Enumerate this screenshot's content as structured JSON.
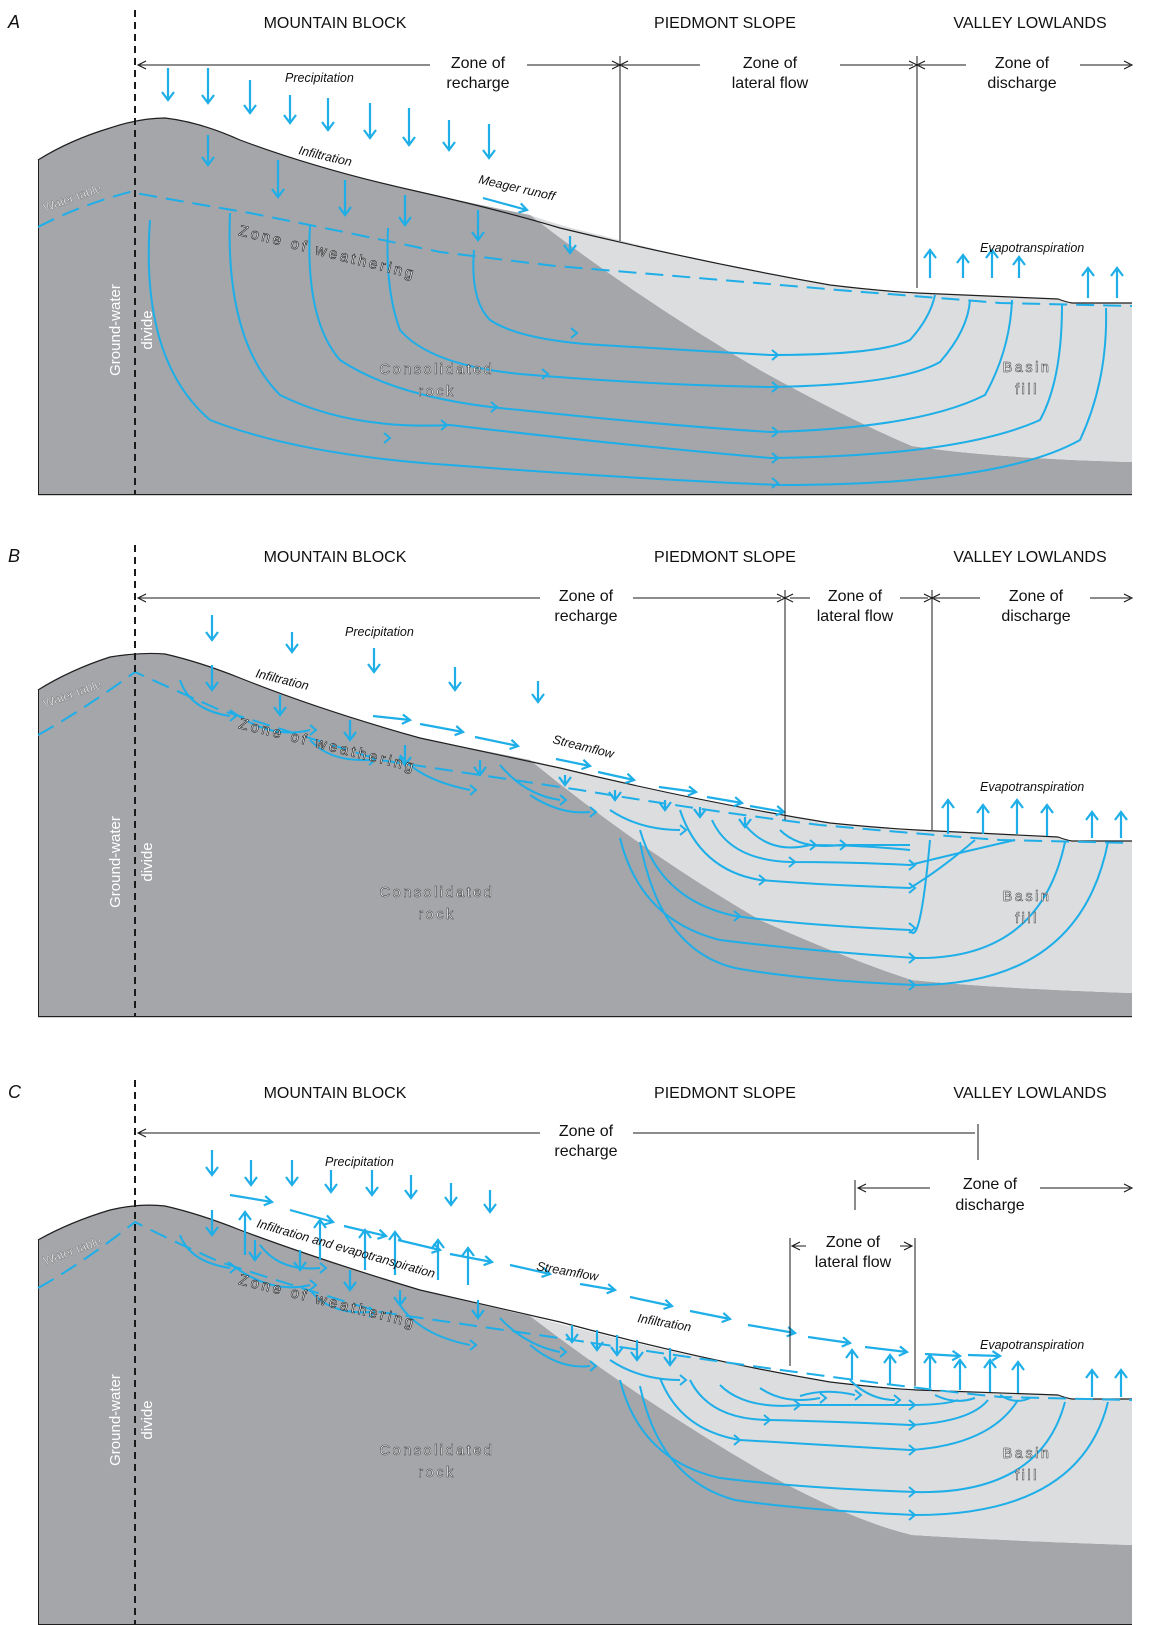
{
  "colors": {
    "rock": "#a4a6aa",
    "basin": "#dcdddf",
    "water": "#1eaee8",
    "line": "#1a1a1a"
  },
  "panels": [
    {
      "letter": "A",
      "regions": {
        "mountain": "MOUNTAIN BLOCK",
        "piedmont": "PIEDMONT SLOPE",
        "valley": "VALLEY LOWLANDS"
      },
      "zones": {
        "recharge": [
          "Zone of",
          "recharge"
        ],
        "lateral": [
          "Zone of",
          "lateral flow"
        ],
        "discharge": [
          "Zone of",
          "discharge"
        ]
      },
      "labels": {
        "precipitation": "Precipitation",
        "infiltration": "Infiltration",
        "runoff": "Meager runoff",
        "evapotranspiration": "Evapotranspiration",
        "water_table": "Water table",
        "weathering": "Zone of weathering",
        "rock": [
          "Consolidated",
          "rock"
        ],
        "basin": [
          "Basin",
          "fill"
        ],
        "divide": [
          "Ground-water",
          "divide"
        ]
      }
    },
    {
      "letter": "B",
      "regions": {
        "mountain": "MOUNTAIN BLOCK",
        "piedmont": "PIEDMONT SLOPE",
        "valley": "VALLEY LOWLANDS"
      },
      "zones": {
        "recharge": [
          "Zone of",
          "recharge"
        ],
        "lateral": [
          "Zone of",
          "lateral flow"
        ],
        "discharge": [
          "Zone of",
          "discharge"
        ]
      },
      "labels": {
        "precipitation": "Precipitation",
        "infiltration": "Infiltration",
        "streamflow": "Streamflow",
        "evapotranspiration": "Evapotranspiration",
        "water_table": "Water table",
        "weathering": "Zone of weathering",
        "rock": [
          "Consolidated",
          "rock"
        ],
        "basin": [
          "Basin",
          "fill"
        ],
        "divide": [
          "Ground-water",
          "divide"
        ]
      }
    },
    {
      "letter": "C",
      "regions": {
        "mountain": "MOUNTAIN BLOCK",
        "piedmont": "PIEDMONT SLOPE",
        "valley": "VALLEY LOWLANDS"
      },
      "zones": {
        "recharge": [
          "Zone of",
          "recharge"
        ],
        "lateral": [
          "Zone of",
          "lateral flow"
        ],
        "discharge": [
          "Zone of",
          "discharge"
        ]
      },
      "labels": {
        "precipitation": "Precipitation",
        "infiltration_et": "Infiltration and evapotranspiration",
        "streamflow": "Streamflow",
        "infiltration": "Infiltration",
        "evapotranspiration": "Evapotranspiration",
        "water_table": "Water table",
        "weathering": "Zone of weathering",
        "rock": [
          "Consolidated",
          "rock"
        ],
        "basin": [
          "Basin",
          "fill"
        ],
        "divide": [
          "Ground-water",
          "divide"
        ]
      }
    }
  ]
}
